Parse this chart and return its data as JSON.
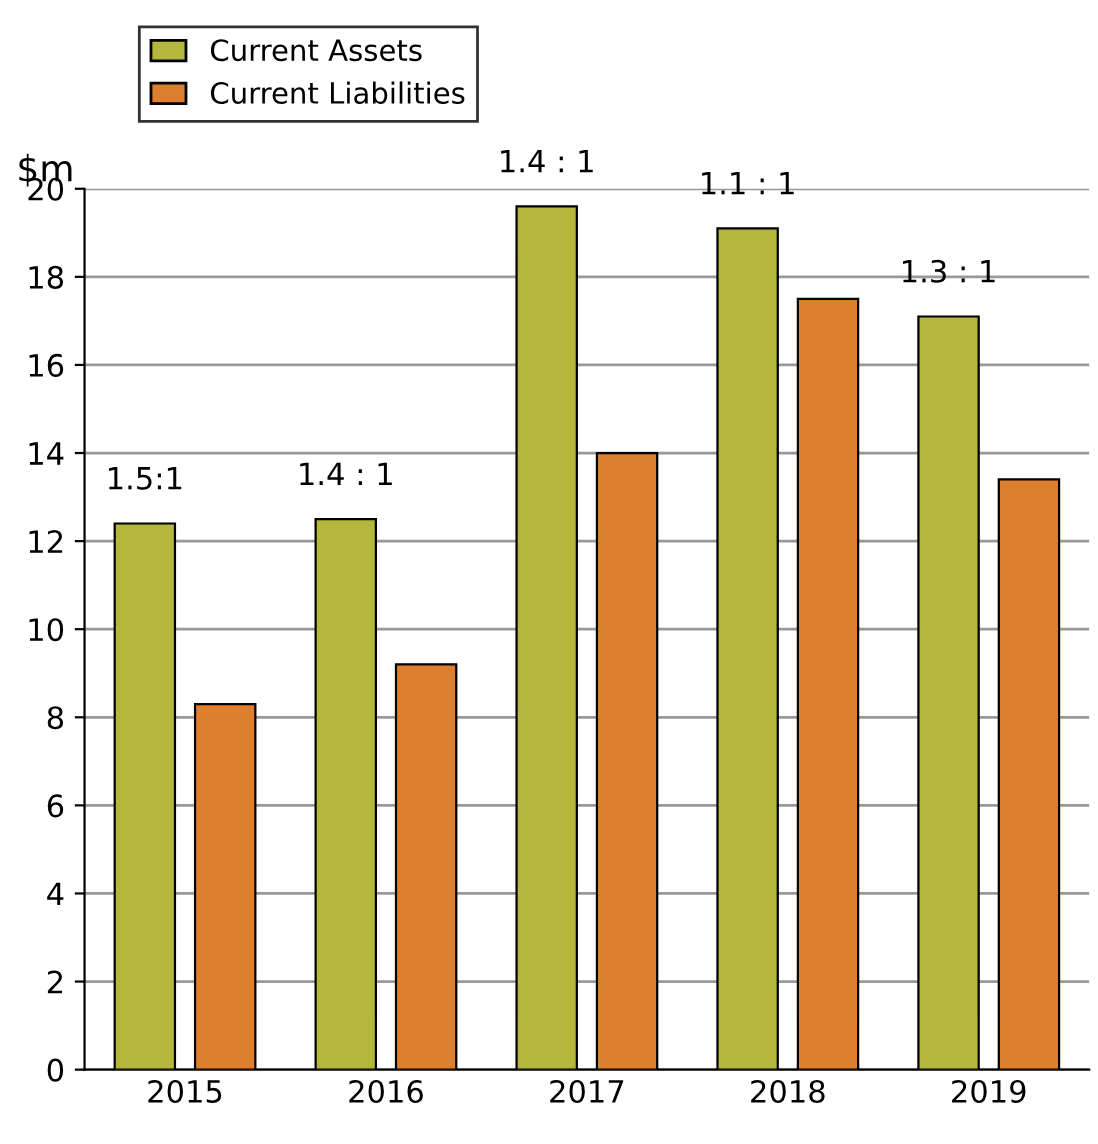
{
  "chart_data": {
    "type": "bar",
    "ylabel": "$m",
    "categories": [
      "2015",
      "2016",
      "2017",
      "2018",
      "2019"
    ],
    "series": [
      {
        "name": "Current Assets",
        "color": "#b5b73d",
        "values": [
          12.4,
          12.5,
          19.6,
          19.1,
          17.1
        ]
      },
      {
        "name": "Current Liabilities",
        "color": "#dc7f2f",
        "values": [
          8.3,
          9.2,
          14.0,
          17.5,
          13.4
        ]
      }
    ],
    "ylim": [
      0,
      20
    ],
    "yticks": [
      0,
      2,
      4,
      6,
      8,
      10,
      12,
      14,
      16,
      18,
      20
    ],
    "grid": "y",
    "legend": "top left",
    "annotations": [
      "1.5:1",
      "1.4 : 1",
      "1.4 : 1",
      "1.1 : 1",
      "1.3 : 1"
    ]
  }
}
